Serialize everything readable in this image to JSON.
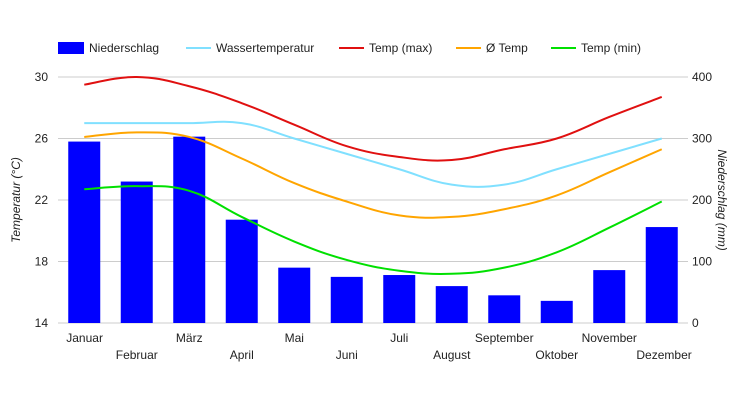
{
  "chart_data": {
    "type": "bar",
    "categories": [
      "Januar",
      "Februar",
      "März",
      "April",
      "Mai",
      "Juni",
      "Juli",
      "August",
      "September",
      "Oktober",
      "November",
      "Dezember"
    ],
    "bar_series": {
      "name": "Niederschlag",
      "axis": "right",
      "color": "#0000ff",
      "values": [
        295,
        230,
        303,
        168,
        90,
        75,
        78,
        60,
        45,
        36,
        86,
        156
      ]
    },
    "line_series": [
      {
        "name": "Wassertemperatur",
        "axis": "left",
        "color": "#80e0ff",
        "values": [
          27,
          27,
          27,
          27,
          26,
          25,
          24,
          23,
          23,
          24,
          25,
          26
        ]
      },
      {
        "name": "Temp (max)",
        "axis": "left",
        "color": "#e01010",
        "values": [
          29.5,
          30,
          29.4,
          28.3,
          26.9,
          25.5,
          24.8,
          24.6,
          25.3,
          26,
          27.4,
          28.7
        ]
      },
      {
        "name": "Ø Temp",
        "axis": "left",
        "color": "#ffa500",
        "values": [
          26.1,
          26.4,
          26.1,
          24.7,
          23.1,
          21.9,
          21.0,
          20.9,
          21.4,
          22.3,
          23.8,
          25.3
        ]
      },
      {
        "name": "Temp (min)",
        "axis": "left",
        "color": "#00e000",
        "values": [
          22.7,
          22.9,
          22.6,
          20.9,
          19.3,
          18.1,
          17.4,
          17.2,
          17.6,
          18.6,
          20.2,
          21.9
        ]
      }
    ],
    "ylabel": "Temperatur (°C)",
    "ylabel_right": "Niederschlag (mm)",
    "ylim": [
      14,
      30
    ],
    "ylim_right": [
      0,
      400
    ],
    "yticks": [
      14,
      18,
      22,
      26,
      30
    ],
    "yticks_right": [
      0,
      100,
      200,
      300,
      400
    ],
    "grid": true,
    "legend_position": "top"
  }
}
